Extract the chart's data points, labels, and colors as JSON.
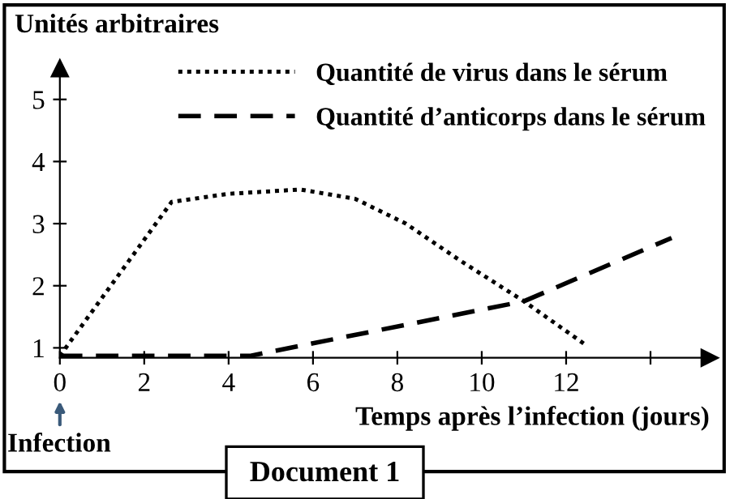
{
  "chart_data": {
    "type": "line",
    "ylabel": "Unités arbitraires",
    "xlabel": "Temps après l’infection (jours)",
    "annotations": [
      "Infection",
      "Document 1"
    ],
    "xlim": [
      0,
      15.4
    ],
    "ylim": [
      0.84,
      5.5
    ],
    "xticks": [
      0,
      2,
      4,
      6,
      8,
      10,
      12,
      {
        "value": 14,
        "label": null
      }
    ],
    "yticks": [
      1,
      2,
      3,
      4,
      5
    ],
    "grid": false,
    "legend": "top right",
    "marker": "none",
    "series": [
      {
        "name": "Quantité de virus dans le sérum",
        "color": "#000000",
        "line_style": "dotted",
        "x": [
          0,
          2.65,
          4,
          5.7,
          7,
          8.2,
          9.5,
          11,
          12.5
        ],
        "values": [
          0.87,
          3.35,
          3.48,
          3.55,
          3.4,
          3.0,
          2.4,
          1.75,
          1.03
        ]
      },
      {
        "name": "Quantité d’anticorps dans le sérum",
        "color": "#000000",
        "line_style": "dashed",
        "x": [
          0,
          4.5,
          11,
          14.5
        ],
        "values": [
          0.87,
          0.87,
          1.75,
          2.77
        ]
      }
    ]
  }
}
